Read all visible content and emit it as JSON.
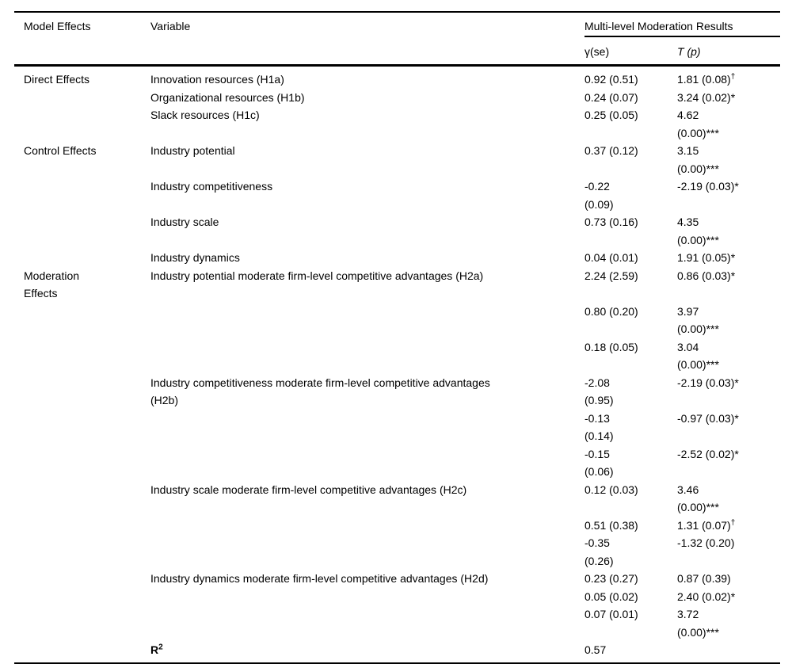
{
  "page": {
    "background_color": "#ffffff",
    "text_color": "#000000"
  },
  "table": {
    "header": {
      "model_effects": "Model Effects",
      "variable": "Variable",
      "group": "Multi-level Moderation Results",
      "gamma_se": "γ(se)",
      "t_p": "T (p)"
    },
    "rows": [
      {
        "model_effect": "Direct Effects",
        "variable": "Innovation resources (H1a)",
        "gamma": "0.92 (0.51)",
        "t": "1.81 (0.08)",
        "t_sup": "†"
      },
      {
        "model_effect": "",
        "variable": "Organizational resources (H1b)",
        "gamma": "0.24 (0.07)",
        "t": "3.24 (0.02)*"
      },
      {
        "model_effect": "",
        "variable": "Slack resources (H1c)",
        "gamma": "0.25 (0.05)",
        "t": "4.62\n(0.00)***"
      },
      {
        "model_effect": "Control Effects",
        "variable": "Industry potential",
        "gamma": "0.37 (0.12)",
        "t": "3.15\n(0.00)***"
      },
      {
        "model_effect": "",
        "variable": "Industry competitiveness",
        "gamma": "-0.22\n(0.09)",
        "t": "-2.19 (0.03)*"
      },
      {
        "model_effect": "",
        "variable": "Industry scale",
        "gamma": "0.73 (0.16)",
        "t": "4.35\n(0.00)***"
      },
      {
        "model_effect": "",
        "variable": "Industry dynamics",
        "gamma": "0.04 (0.01)",
        "t": "1.91 (0.05)*"
      },
      {
        "model_effect": "Moderation\nEffects",
        "variable": "Industry potential moderate firm-level competitive advantages (H2a)",
        "gamma": "2.24 (2.59)",
        "t": "0.86 (0.03)*"
      },
      {
        "model_effect": "",
        "variable": "",
        "gamma": "0.80 (0.20)",
        "t": "3.97\n(0.00)***"
      },
      {
        "model_effect": "",
        "variable": "",
        "gamma": "0.18 (0.05)",
        "t": "3.04\n(0.00)***"
      },
      {
        "model_effect": "",
        "variable": "Industry competitiveness moderate firm-level competitive advantages\n(H2b)",
        "gamma": "-2.08\n(0.95)",
        "t": "-2.19 (0.03)*"
      },
      {
        "model_effect": "",
        "variable": "",
        "gamma": "-0.13\n(0.14)",
        "t": "-0.97 (0.03)*"
      },
      {
        "model_effect": "",
        "variable": "",
        "gamma": "-0.15\n(0.06)",
        "t": "-2.52 (0.02)*"
      },
      {
        "model_effect": "",
        "variable": "Industry scale moderate firm-level competitive advantages (H2c)",
        "gamma": "0.12 (0.03)",
        "t": "3.46\n(0.00)***"
      },
      {
        "model_effect": "",
        "variable": "",
        "gamma": "0.51 (0.38)",
        "t": "1.31 (0.07)",
        "t_sup": "†"
      },
      {
        "model_effect": "",
        "variable": "",
        "gamma": "-0.35\n(0.26)",
        "t": "-1.32 (0.20)"
      },
      {
        "model_effect": "",
        "variable": "Industry dynamics moderate firm-level competitive advantages (H2d)",
        "gamma": "0.23 (0.27)",
        "t": "0.87 (0.39)"
      },
      {
        "model_effect": "",
        "variable": "",
        "gamma": "0.05 (0.02)",
        "t": "2.40 (0.02)*"
      },
      {
        "model_effect": "",
        "variable": "",
        "gamma": "0.07 (0.01)",
        "t": "3.72\n(0.00)***"
      },
      {
        "model_effect": "",
        "variable": "R",
        "variable_sup": "2",
        "variable_bold": true,
        "gamma": "0.57",
        "t": ""
      }
    ]
  }
}
